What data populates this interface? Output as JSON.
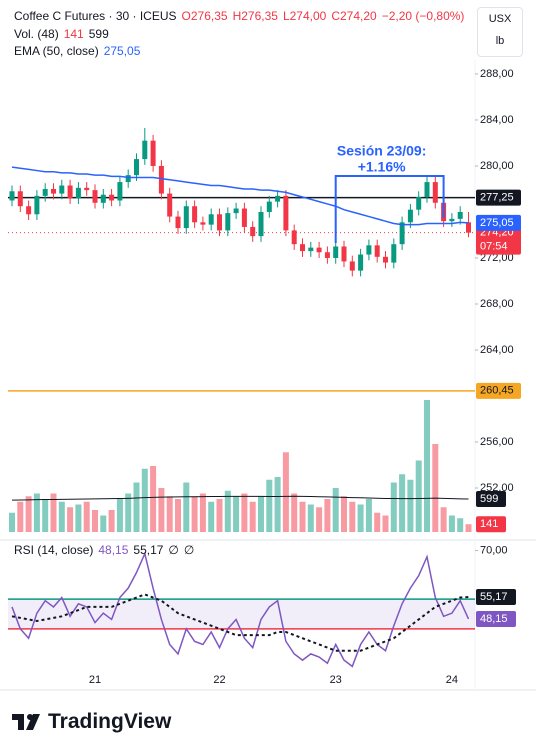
{
  "header": {
    "symbol": "Coffee C Futures · 30 · ICEUS",
    "open": "O276,35",
    "high": "H276,35",
    "low": "L274,00",
    "close": "C274,20",
    "change": "−2,20 (−0,80%)"
  },
  "units": [
    "USX",
    "lb"
  ],
  "brand": "TradingView",
  "chart_data": [
    {
      "type": "candlestick",
      "name": "Coffee C Futures",
      "categories": [
        null,
        null,
        null,
        null,
        null,
        null,
        null,
        null,
        null,
        null,
        "21",
        null,
        null,
        null,
        null,
        null,
        null,
        null,
        null,
        null,
        null,
        null,
        null,
        null,
        null,
        "22",
        null,
        null,
        null,
        null,
        null,
        null,
        null,
        null,
        null,
        null,
        null,
        null,
        null,
        "23",
        null,
        null,
        null,
        null,
        null,
        null,
        null,
        null,
        null,
        null,
        null,
        null,
        null,
        "24",
        null,
        null
      ],
      "open": [
        277.0,
        277.8,
        276.5,
        275.8,
        277.4,
        278.0,
        277.6,
        278.3,
        277.2,
        278.1,
        277.9,
        276.8,
        277.5,
        277.0,
        278.6,
        279.2,
        280.6,
        282.2,
        280.0,
        277.6,
        275.6,
        274.6,
        276.5,
        275.1,
        274.9,
        275.8,
        274.4,
        275.9,
        276.3,
        274.7,
        273.9,
        276.0,
        276.9,
        277.4,
        274.4,
        273.2,
        272.6,
        272.9,
        272.5,
        272.0,
        273.0,
        271.7,
        270.9,
        272.3,
        273.1,
        272.1,
        271.6,
        273.2,
        275.1,
        276.2,
        277.3,
        278.6,
        276.8,
        275.2,
        275.4,
        275.1
      ],
      "high": [
        278.3,
        278.3,
        277.0,
        277.9,
        278.5,
        278.5,
        278.8,
        278.8,
        278.6,
        278.6,
        278.4,
        278.0,
        278.0,
        279.1,
        279.7,
        281.1,
        283.3,
        282.7,
        280.5,
        278.1,
        276.1,
        277.0,
        277.0,
        275.6,
        276.3,
        276.3,
        276.4,
        276.8,
        276.8,
        275.2,
        276.5,
        277.4,
        277.9,
        277.9,
        274.9,
        273.7,
        273.4,
        273.4,
        273.0,
        273.5,
        273.5,
        272.2,
        272.8,
        273.6,
        273.6,
        272.6,
        273.7,
        275.6,
        276.7,
        277.8,
        279.1,
        279.1,
        277.3,
        275.9,
        276.5,
        276.0
      ],
      "low": [
        276.5,
        276.0,
        275.3,
        275.3,
        276.9,
        277.1,
        277.1,
        276.7,
        276.7,
        277.4,
        276.3,
        276.3,
        276.5,
        276.5,
        278.1,
        278.7,
        280.1,
        279.5,
        277.1,
        275.1,
        274.1,
        274.1,
        274.6,
        274.4,
        274.4,
        273.9,
        273.9,
        275.4,
        274.2,
        273.4,
        273.4,
        275.5,
        276.4,
        273.9,
        272.7,
        272.1,
        272.1,
        272.0,
        271.5,
        271.5,
        271.2,
        270.4,
        270.4,
        271.8,
        271.6,
        271.1,
        271.1,
        272.7,
        274.6,
        275.7,
        276.8,
        276.3,
        274.7,
        274.7,
        274.9,
        273.8
      ],
      "close": [
        277.8,
        276.5,
        275.8,
        277.4,
        278.0,
        277.6,
        278.3,
        277.2,
        278.1,
        277.9,
        276.8,
        277.5,
        277.0,
        278.6,
        279.2,
        280.6,
        282.2,
        280.0,
        277.6,
        275.6,
        274.6,
        276.5,
        275.1,
        274.9,
        275.8,
        274.4,
        275.9,
        276.3,
        274.7,
        273.9,
        276.0,
        276.9,
        277.4,
        274.4,
        273.2,
        272.6,
        272.9,
        272.5,
        272.0,
        273.0,
        271.7,
        270.9,
        272.3,
        273.1,
        272.1,
        271.6,
        273.2,
        275.1,
        276.2,
        277.3,
        278.6,
        276.8,
        275.2,
        275.4,
        276.0,
        274.2
      ],
      "up_color": "#089981",
      "down_color": "#f23645",
      "ema": {
        "name": "EMA (50, close)",
        "color": "#2962ff",
        "value_label": "275,05",
        "values": [
          279.9,
          279.8,
          279.7,
          279.6,
          279.5,
          279.5,
          279.4,
          279.4,
          279.3,
          279.3,
          279.2,
          279.2,
          279.1,
          279.1,
          279.0,
          279.0,
          279.0,
          279.0,
          278.9,
          278.8,
          278.7,
          278.6,
          278.5,
          278.4,
          278.3,
          278.3,
          278.2,
          278.1,
          278.0,
          278.0,
          277.9,
          277.9,
          277.8,
          277.7,
          277.5,
          277.3,
          277.1,
          276.9,
          276.7,
          276.5,
          276.2,
          276.0,
          275.8,
          275.6,
          275.4,
          275.2,
          275.0,
          274.9,
          274.9,
          274.9,
          275.0,
          275.0,
          275.0,
          275.0,
          275.1,
          275.05
        ]
      },
      "ylim": [
        247.48,
        294.43
      ],
      "yticks": [
        {
          "value": 288,
          "label": "288,00"
        },
        {
          "value": 284,
          "label": "284,00"
        },
        {
          "value": 280,
          "label": "280,00"
        },
        {
          "value": 272,
          "label": "272,00"
        },
        {
          "value": 268,
          "label": "268,00"
        },
        {
          "value": 264,
          "label": "264,00"
        },
        {
          "value": 256,
          "label": "256,00"
        },
        {
          "value": 252,
          "label": "252,00"
        }
      ],
      "price_lines": [
        {
          "value": 277.25,
          "label": "277,25",
          "color": "#131722",
          "style": "solid"
        },
        {
          "value": 274.2,
          "label": "274,20",
          "sublabel": "07:54",
          "color": "#f23645",
          "style": "dotted"
        },
        {
          "value": 260.45,
          "label": "260,45",
          "color": "#f5a623",
          "style": "solid"
        }
      ],
      "annotation": {
        "title": "Sesión 23/09:",
        "text": "+1.16%",
        "color": "#2962ff"
      },
      "grid": false
    },
    {
      "type": "bar",
      "name": "Vol. (48)",
      "values": [
        350,
        550,
        650,
        700,
        600,
        700,
        550,
        450,
        500,
        550,
        400,
        300,
        400,
        600,
        700,
        900,
        1150,
        1200,
        800,
        650,
        600,
        900,
        650,
        700,
        550,
        600,
        750,
        650,
        700,
        550,
        650,
        950,
        1000,
        1450,
        700,
        550,
        500,
        450,
        600,
        800,
        650,
        550,
        500,
        600,
        350,
        300,
        900,
        1050,
        950,
        1300,
        2400,
        1600,
        450,
        300,
        250,
        141
      ],
      "ma": [
        580,
        582,
        585,
        588,
        590,
        592,
        594,
        596,
        598,
        600,
        602,
        604,
        606,
        608,
        612,
        618,
        624,
        630,
        634,
        636,
        638,
        640,
        642,
        644,
        645,
        646,
        647,
        648,
        648,
        648,
        647,
        646,
        646,
        648,
        650,
        648,
        646,
        642,
        638,
        634,
        630,
        626,
        622,
        618,
        614,
        610,
        608,
        606,
        606,
        608,
        612,
        616,
        612,
        606,
        602,
        599
      ],
      "up_color": "rgba(8,153,129,0.5)",
      "down_color": "rgba(242,54,69,0.5)",
      "ma_color": "#131722",
      "ylim": [
        0,
        2400
      ]
    },
    {
      "type": "line",
      "name": "RSI (14, close)",
      "extra": [
        "∅",
        "∅"
      ],
      "series": [
        {
          "name": "RSI",
          "color": "#7e57c2",
          "value_label": "48,15",
          "values": [
            52,
            45,
            42,
            50,
            54,
            52,
            55,
            49,
            53,
            52,
            47,
            50,
            48,
            55,
            58,
            63,
            69,
            58,
            48,
            40,
            37,
            45,
            41,
            40,
            44,
            39,
            45,
            48,
            42,
            39,
            48,
            52,
            54,
            41,
            37,
            35,
            37,
            36,
            34,
            40,
            35,
            33,
            40,
            44,
            40,
            38,
            46,
            53,
            58,
            62,
            68,
            55,
            49,
            50,
            54,
            48.15
          ]
        },
        {
          "name": "RSI MA",
          "color": "#131722",
          "value_label": "55,17",
          "values": [
            49,
            48.5,
            48,
            47.5,
            48,
            48.5,
            49,
            50,
            51,
            52,
            52,
            52,
            52,
            53,
            54,
            55,
            56,
            55,
            54,
            52,
            50,
            49,
            48,
            47,
            46,
            45,
            44,
            43,
            43,
            43,
            43,
            43,
            44,
            44,
            43,
            42,
            41,
            40,
            39,
            38,
            38,
            38,
            38,
            39,
            40,
            41,
            42,
            44,
            46,
            48,
            50,
            52,
            53,
            54,
            55,
            55.17
          ]
        }
      ],
      "bands": [
        {
          "value": 54.5,
          "color": "#089981"
        },
        {
          "value": 45,
          "color": "#f23645"
        }
      ],
      "ylim": [
        25.46,
        73.38
      ],
      "yticks": [
        {
          "value": 70,
          "label": "70,00"
        }
      ]
    }
  ]
}
